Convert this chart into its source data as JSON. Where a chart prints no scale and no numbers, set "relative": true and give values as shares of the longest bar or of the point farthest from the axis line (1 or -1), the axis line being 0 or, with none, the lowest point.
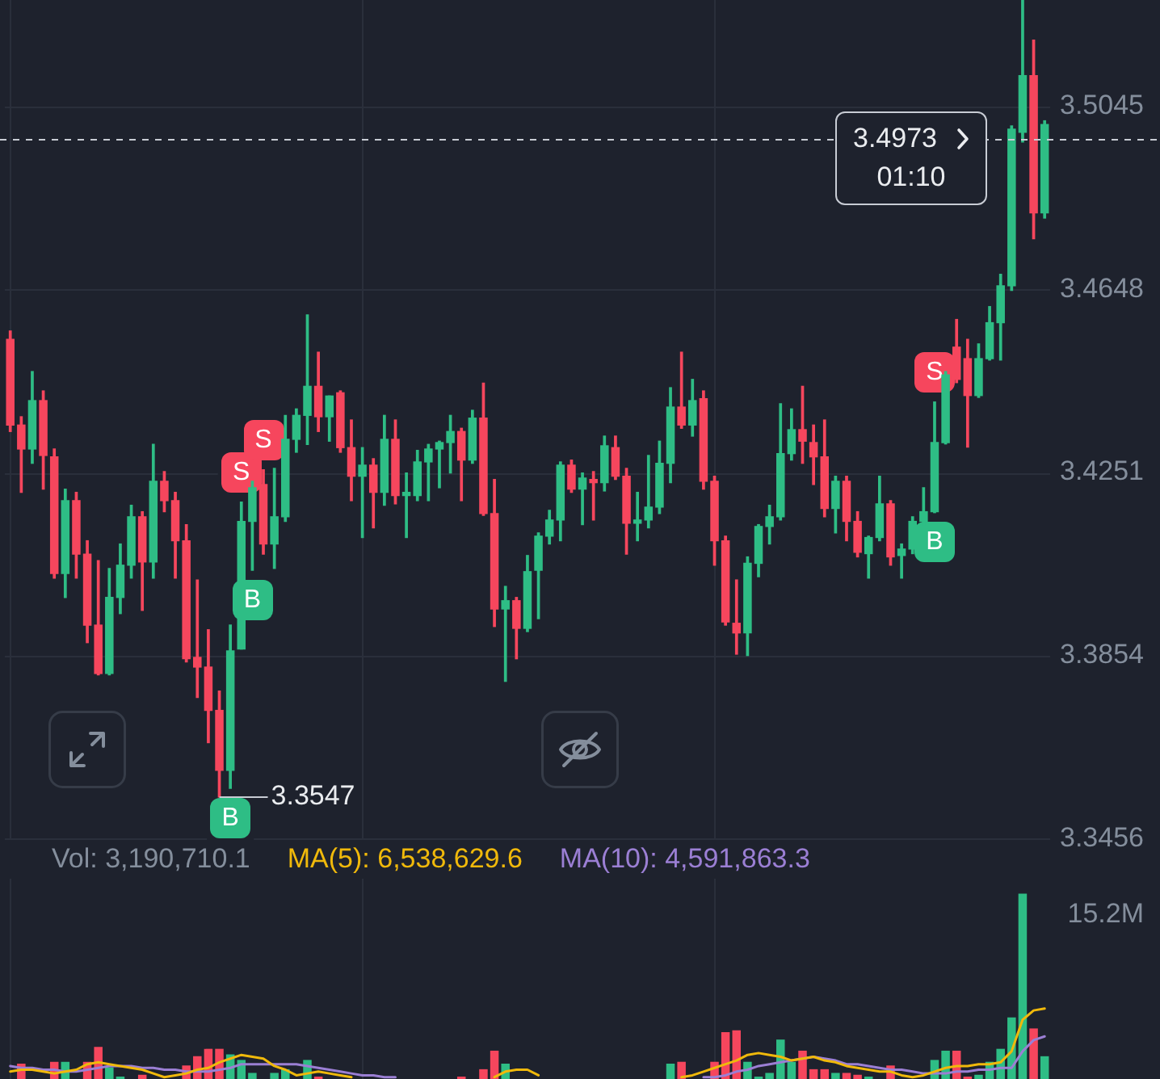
{
  "chart_data": [
    {
      "type": "candlestick",
      "categories": [
        null,
        null,
        null,
        null,
        null,
        null,
        null,
        null,
        null,
        null,
        null,
        null,
        null,
        null,
        null,
        null,
        null,
        null,
        null,
        null,
        null,
        null,
        null,
        null,
        null,
        null,
        null,
        null,
        null,
        null,
        null,
        null,
        null,
        null,
        null,
        null,
        null,
        null,
        null,
        null,
        null,
        null,
        null,
        null,
        null,
        null,
        null,
        null,
        null,
        null,
        null,
        null,
        null,
        null,
        null,
        null,
        null,
        null,
        null,
        null,
        null,
        null,
        null,
        null,
        null,
        null,
        null,
        null,
        null,
        null,
        null,
        null,
        null,
        null,
        null,
        null,
        null,
        null,
        null,
        null,
        null,
        null,
        null,
        null,
        null,
        null,
        null,
        null,
        null,
        null,
        null,
        null,
        null,
        null,
        null
      ],
      "ohlc": [
        [
          3.454,
          3.4558,
          3.434,
          3.4354
        ],
        [
          3.4354,
          3.4372,
          3.4208,
          3.4302
        ],
        [
          3.4302,
          3.447,
          3.4271,
          3.4407
        ],
        [
          3.4407,
          3.4428,
          3.4215,
          3.4288
        ],
        [
          3.4285,
          3.4302,
          3.4022,
          3.4032
        ],
        [
          3.4032,
          3.4215,
          3.398,
          3.419
        ],
        [
          3.419,
          3.4208,
          3.4022,
          3.4074
        ],
        [
          3.4074,
          3.4103,
          3.3882,
          3.392
        ],
        [
          3.392,
          3.406,
          3.3812,
          3.3815
        ],
        [
          3.3815,
          3.4043,
          3.3812,
          3.398
        ],
        [
          3.398,
          3.4096,
          3.3945,
          3.405
        ],
        [
          3.405,
          3.418,
          3.4022,
          3.4155
        ],
        [
          3.4155,
          3.4166,
          3.3952,
          3.4057
        ],
        [
          3.4057,
          3.4312,
          3.4022,
          3.4232
        ],
        [
          3.4232,
          3.4253,
          3.4166,
          3.419
        ],
        [
          3.419,
          3.4208,
          3.4022,
          3.4103
        ],
        [
          3.4103,
          3.4138,
          3.384,
          3.3847
        ],
        [
          3.385,
          3.4018,
          3.3763,
          3.3829
        ],
        [
          3.3829,
          3.391,
          3.3665,
          3.3735
        ],
        [
          3.3735,
          3.3777,
          3.3547,
          3.3605
        ],
        [
          3.3605,
          3.392,
          3.3566,
          3.3864
        ],
        [
          3.3868,
          3.4187,
          3.3868,
          3.4145
        ],
        [
          3.4145,
          3.4232,
          3.4039,
          3.4218
        ],
        [
          3.4225,
          3.4257,
          3.4074,
          3.4096
        ],
        [
          3.4096,
          3.426,
          3.4043,
          3.4155
        ],
        [
          3.4155,
          3.4375,
          3.4145,
          3.4323
        ],
        [
          3.4323,
          3.4389,
          3.4295,
          3.4375
        ],
        [
          3.4375,
          3.4593,
          3.4312,
          3.4438
        ],
        [
          3.4438,
          3.4512,
          3.434,
          3.4372
        ],
        [
          3.4372,
          3.4417,
          3.4319,
          3.4417
        ],
        [
          3.4424,
          3.4428,
          3.4295,
          3.4305
        ],
        [
          3.4305,
          3.4365,
          3.419,
          3.4243
        ],
        [
          3.4243,
          3.4305,
          3.411,
          3.4267
        ],
        [
          3.4267,
          3.4281,
          3.4131,
          3.4208
        ],
        [
          3.4208,
          3.4375,
          3.418,
          3.4323
        ],
        [
          3.4323,
          3.4365,
          3.4183,
          3.4201
        ],
        [
          3.4201,
          3.425,
          3.411,
          3.4208
        ],
        [
          3.4201,
          3.4299,
          3.419,
          3.4274
        ],
        [
          3.4274,
          3.4312,
          3.419,
          3.4302
        ],
        [
          3.4302,
          3.4319,
          3.4218,
          3.4316
        ],
        [
          3.4316,
          3.4375,
          3.425,
          3.434
        ],
        [
          3.434,
          3.4347,
          3.419,
          3.4278
        ],
        [
          3.4278,
          3.4386,
          3.4271,
          3.4369
        ],
        [
          3.4369,
          3.4445,
          3.4158,
          3.4162
        ],
        [
          3.4162,
          3.4236,
          3.3917,
          3.3955
        ],
        [
          3.3955,
          3.4004,
          3.3798,
          3.3973
        ],
        [
          3.3973,
          3.398,
          3.3847,
          3.3913
        ],
        [
          3.3913,
          3.4071,
          3.3906,
          3.4036
        ],
        [
          3.4039,
          3.412,
          3.3934,
          3.4113
        ],
        [
          3.4113,
          3.4169,
          3.4096,
          3.4148
        ],
        [
          3.4148,
          3.4274,
          3.4103,
          3.4267
        ],
        [
          3.4267,
          3.4278,
          3.4208,
          3.4215
        ],
        [
          3.4215,
          3.425,
          3.4138,
          3.4239
        ],
        [
          3.4236,
          3.4253,
          3.4148,
          3.4229
        ],
        [
          3.4229,
          3.433,
          3.4211,
          3.4309
        ],
        [
          3.4305,
          3.433,
          3.4236,
          3.4243
        ],
        [
          3.4243,
          3.426,
          3.4074,
          3.4141
        ],
        [
          3.4141,
          3.4208,
          3.4103,
          3.4148
        ],
        [
          3.4148,
          3.4288,
          3.4131,
          3.4176
        ],
        [
          3.4176,
          3.4319,
          3.4162,
          3.4271
        ],
        [
          3.4271,
          3.4435,
          3.4229,
          3.4393
        ],
        [
          3.4393,
          3.4512,
          3.4347,
          3.4354
        ],
        [
          3.4354,
          3.4453,
          3.433,
          3.4407
        ],
        [
          3.4411,
          3.4428,
          3.4215,
          3.4232
        ],
        [
          3.4232,
          3.4243,
          3.405,
          3.4103
        ],
        [
          3.4103,
          3.4113,
          3.392,
          3.3927
        ],
        [
          3.3924,
          3.4018,
          3.3857,
          3.3903
        ],
        [
          3.3903,
          3.4068,
          3.3854,
          3.4054
        ],
        [
          3.4054,
          3.4138,
          3.4025,
          3.4134
        ],
        [
          3.4134,
          3.418,
          3.4096,
          3.4155
        ],
        [
          3.4155,
          3.44,
          3.4148,
          3.4292
        ],
        [
          3.4292,
          3.4389,
          3.4278,
          3.4344
        ],
        [
          3.4344,
          3.4438,
          3.4271,
          3.4319
        ],
        [
          3.4316,
          3.4354,
          3.4225,
          3.4285
        ],
        [
          3.4285,
          3.4365,
          3.4155,
          3.4173
        ],
        [
          3.4173,
          3.4243,
          3.412,
          3.4232
        ],
        [
          3.4232,
          3.4243,
          3.4103,
          3.4145
        ],
        [
          3.4145,
          3.4166,
          3.4068,
          3.4078
        ],
        [
          3.4075,
          3.4113,
          3.4022,
          3.411
        ],
        [
          3.411,
          3.4243,
          3.4103,
          3.4183
        ],
        [
          3.4183,
          3.419,
          3.405,
          3.4068
        ],
        [
          3.4071,
          3.4096,
          3.4022,
          3.4085
        ],
        [
          3.4085,
          3.4155,
          3.4075,
          3.4145
        ],
        [
          3.4145,
          3.4218,
          3.4138,
          3.4166
        ],
        [
          3.4166,
          3.4404,
          3.4164,
          3.4316
        ],
        [
          3.4316,
          3.447,
          3.4313,
          3.4463
        ],
        [
          3.4523,
          3.4583,
          3.4446,
          3.4453
        ],
        [
          3.4498,
          3.454,
          3.4306,
          3.4418
        ],
        [
          3.4418,
          3.453,
          3.4414,
          3.4498
        ],
        [
          3.4498,
          3.4611,
          3.4495,
          3.4576
        ],
        [
          3.4576,
          3.4681,
          3.4495,
          3.4656
        ],
        [
          3.4656,
          3.5003,
          3.4646,
          3.4996
        ],
        [
          3.4989,
          3.5276,
          3.4968,
          3.5112
        ],
        [
          3.5112,
          3.5189,
          3.4758,
          3.4814
        ],
        [
          3.4814,
          3.5014,
          3.4803,
          3.5006
        ]
      ],
      "colors": [
        "#f6465d",
        "#f6465d",
        "#2ebd85",
        "#f6465d",
        "#f6465d",
        "#2ebd85",
        "#f6465d",
        "#f6465d",
        "#f6465d",
        "#2ebd85",
        "#2ebd85",
        "#2ebd85",
        "#f6465d",
        "#2ebd85",
        "#f6465d",
        "#f6465d",
        "#f6465d",
        "#f6465d",
        "#f6465d",
        "#f6465d",
        "#2ebd85",
        "#2ebd85",
        "#2ebd85",
        "#f6465d",
        "#2ebd85",
        "#2ebd85",
        "#2ebd85",
        "#2ebd85",
        "#f6465d",
        "#2ebd85",
        "#f6465d",
        "#f6465d",
        "#2ebd85",
        "#f6465d",
        "#2ebd85",
        "#f6465d",
        "#2ebd85",
        "#2ebd85",
        "#2ebd85",
        "#2ebd85",
        "#2ebd85",
        "#f6465d",
        "#2ebd85",
        "#f6465d",
        "#f6465d",
        "#2ebd85",
        "#f6465d",
        "#2ebd85",
        "#2ebd85",
        "#2ebd85",
        "#2ebd85",
        "#f6465d",
        "#2ebd85",
        "#f6465d",
        "#2ebd85",
        "#f6465d",
        "#f6465d",
        "#2ebd85",
        "#2ebd85",
        "#2ebd85",
        "#2ebd85",
        "#f6465d",
        "#2ebd85",
        "#f6465d",
        "#f6465d",
        "#f6465d",
        "#f6465d",
        "#2ebd85",
        "#2ebd85",
        "#2ebd85",
        "#2ebd85",
        "#2ebd85",
        "#f6465d",
        "#f6465d",
        "#f6465d",
        "#2ebd85",
        "#f6465d",
        "#f6465d",
        "#2ebd85",
        "#2ebd85",
        "#f6465d",
        "#2ebd85",
        "#2ebd85",
        "#2ebd85",
        "#2ebd85",
        "#2ebd85",
        "#f6465d",
        "#f6465d",
        "#2ebd85",
        "#2ebd85",
        "#2ebd85",
        "#2ebd85",
        "#2ebd85",
        "#f6465d",
        "#2ebd85"
      ],
      "value_labels": [
        null,
        null,
        null,
        null,
        null,
        null,
        null,
        null,
        null,
        null,
        null,
        null,
        null,
        null,
        null,
        null,
        null,
        null,
        null,
        "3.3547",
        null,
        null,
        null,
        null,
        null,
        null,
        null,
        null,
        null,
        null,
        null,
        null,
        null,
        null,
        null,
        null,
        null,
        null,
        null,
        null,
        null,
        null,
        null,
        null,
        null,
        null,
        null,
        null,
        null,
        null,
        null,
        null,
        null,
        null,
        null,
        null,
        null,
        null,
        null,
        null,
        null,
        null,
        null,
        null,
        null,
        null,
        null,
        null,
        null,
        null,
        null,
        null,
        null,
        null,
        null,
        null,
        null,
        null,
        null,
        null,
        null,
        null,
        null,
        null,
        null,
        null,
        null,
        null,
        null,
        null,
        null,
        null,
        null,
        null,
        null
      ],
      "ylim": [
        3.3454,
        3.5276
      ],
      "yticks": [
        3.3456,
        3.3854,
        3.4251,
        3.4648,
        3.5045
      ],
      "grid": true,
      "tick_labels": "y",
      "ref_lines": [
        {
          "axis": "y",
          "value": 3.4973,
          "label": "3.4973",
          "color": "#c8ccd4",
          "line_style": "dashed"
        }
      ],
      "annotations": [
        {
          "text": "B",
          "y": 3.3566
        },
        {
          "text": "S",
          "y": 3.4187
        },
        {
          "text": "B",
          "y": 3.4039
        },
        {
          "text": "S",
          "y": 3.4257
        },
        {
          "text": "S",
          "y": 3.4404
        },
        {
          "text": "B",
          "y": 3.4164
        },
        "01:10"
      ]
    },
    {
      "type": "bar",
      "relative": true,
      "title": "Vol: 3,190,710.1",
      "legend": "top left",
      "marker": "none",
      "tick_labels": false,
      "grid": "x",
      "categories": [
        null,
        null,
        null,
        null,
        null,
        null,
        null,
        null,
        null,
        null,
        null,
        null,
        null,
        null,
        null,
        null,
        null,
        null,
        null,
        null,
        null,
        null,
        null,
        null,
        null,
        null,
        null,
        null,
        null,
        null,
        null,
        null,
        null,
        null,
        null,
        null,
        null,
        null,
        null,
        null,
        null,
        null,
        null,
        null,
        null,
        null,
        null,
        null,
        null,
        null,
        null,
        null,
        null,
        null,
        null,
        null,
        null,
        null,
        null,
        null,
        null,
        null,
        null,
        null,
        null,
        null,
        null,
        null,
        null,
        null,
        null,
        null,
        null,
        null,
        null,
        null,
        null,
        null,
        null,
        null,
        null,
        null,
        null,
        null,
        null,
        null,
        null,
        null,
        null,
        null,
        null,
        null,
        null,
        null,
        null
      ],
      "series": [
        {
          "values": [
            null,
            0.08,
            null,
            null,
            0.09,
            0.09,
            null,
            0.09,
            0.17,
            0.06,
            0.01,
            null,
            0.02,
            null,
            null,
            null,
            0.07,
            0.12,
            0.16,
            0.16,
            0.13,
            0.1,
            0.03,
            null,
            0.03,
            0.05,
            null,
            0.1,
            0.01,
            null,
            null,
            null,
            null,
            null,
            null,
            null,
            null,
            null,
            null,
            null,
            null,
            0.01,
            null,
            0.05,
            0.15,
            0.08,
            null,
            null,
            null,
            null,
            null,
            null,
            null,
            null,
            null,
            null,
            null,
            null,
            null,
            null,
            0.08,
            0.09,
            null,
            null,
            0.09,
            0.25,
            0.26,
            0.09,
            0.01,
            0.03,
            0.21,
            0.09,
            0.15,
            0.05,
            0.05,
            0.03,
            0.03,
            0.02,
            0.01,
            null,
            0.07,
            null,
            null,
            null,
            0.1,
            0.15,
            0.15,
            0.01,
            0.02,
            0.09,
            0.16,
            0.33,
            1,
            0.27,
            0.12
          ],
          "colors": [
            "#f6465d",
            "#f6465d",
            "#2ebd85",
            "#f6465d",
            "#f6465d",
            "#2ebd85",
            "#f6465d",
            "#f6465d",
            "#f6465d",
            "#2ebd85",
            "#2ebd85",
            "#2ebd85",
            "#f6465d",
            "#2ebd85",
            "#f6465d",
            "#f6465d",
            "#f6465d",
            "#f6465d",
            "#f6465d",
            "#f6465d",
            "#2ebd85",
            "#2ebd85",
            "#2ebd85",
            "#f6465d",
            "#2ebd85",
            "#2ebd85",
            "#2ebd85",
            "#2ebd85",
            "#f6465d",
            "#2ebd85",
            "#f6465d",
            "#f6465d",
            "#2ebd85",
            "#f6465d",
            "#2ebd85",
            "#f6465d",
            "#2ebd85",
            "#2ebd85",
            "#2ebd85",
            "#2ebd85",
            "#2ebd85",
            "#f6465d",
            "#2ebd85",
            "#f6465d",
            "#f6465d",
            "#2ebd85",
            "#f6465d",
            "#2ebd85",
            "#2ebd85",
            "#2ebd85",
            "#2ebd85",
            "#f6465d",
            "#2ebd85",
            "#f6465d",
            "#2ebd85",
            "#f6465d",
            "#f6465d",
            "#2ebd85",
            "#2ebd85",
            "#2ebd85",
            "#2ebd85",
            "#f6465d",
            "#2ebd85",
            "#f6465d",
            "#f6465d",
            "#f6465d",
            "#f6465d",
            "#2ebd85",
            "#2ebd85",
            "#2ebd85",
            "#2ebd85",
            "#2ebd85",
            "#f6465d",
            "#f6465d",
            "#f6465d",
            "#2ebd85",
            "#f6465d",
            "#f6465d",
            "#2ebd85",
            "#2ebd85",
            "#f6465d",
            "#2ebd85",
            "#2ebd85",
            "#2ebd85",
            "#2ebd85",
            "#2ebd85",
            "#f6465d",
            "#f6465d",
            "#2ebd85",
            "#2ebd85",
            "#2ebd85",
            "#2ebd85",
            "#2ebd85",
            "#f6465d",
            "#2ebd85"
          ]
        },
        {
          "name": "MA(5): 6,538,629.6",
          "type": "line",
          "color": "#f0b90b",
          "values": [
            0.04,
            0.05,
            0.05,
            0.04,
            0.03,
            0.04,
            0.05,
            0.08,
            0.09,
            0.08,
            0.07,
            0.06,
            0.05,
            0.03,
            0.01,
            0.02,
            0.03,
            0.05,
            0.06,
            0.09,
            0.11,
            0.13,
            0.12,
            0.11,
            0.07,
            0.05,
            0.02,
            0.03,
            0.04,
            0.03,
            0.02,
            0.01,
            null,
            null,
            null,
            null,
            null,
            null,
            null,
            null,
            null,
            null,
            null,
            null,
            0.01,
            0.04,
            0.05,
            0.05,
            0.02,
            null,
            null,
            null,
            null,
            null,
            null,
            null,
            null,
            null,
            null,
            null,
            null,
            0.01,
            0.02,
            0.04,
            0.06,
            0.08,
            0.1,
            0.13,
            0.14,
            0.13,
            0.12,
            0.1,
            0.11,
            0.12,
            0.1,
            0.09,
            0.07,
            0.06,
            0.05,
            0.04,
            0.04,
            0.02,
            0.01,
            0.02,
            0.04,
            0.06,
            0.07,
            0.07,
            0.08,
            0.08,
            0.09,
            0.15,
            0.32,
            0.37,
            0.38
          ]
        },
        {
          "name": "MA(10): 4,591,863.3",
          "type": "line",
          "color": "#9b7fd4",
          "values": [
            0.07,
            0.06,
            0.06,
            0.05,
            0.05,
            0.04,
            0.04,
            0.05,
            0.06,
            0.07,
            0.07,
            0.07,
            0.06,
            0.06,
            0.05,
            0.05,
            0.04,
            0.04,
            0.04,
            0.05,
            0.06,
            0.08,
            0.08,
            0.08,
            0.08,
            0.08,
            0.08,
            0.07,
            0.06,
            0.05,
            0.04,
            0.03,
            0.02,
            0.02,
            0.01,
            0.01,
            null,
            null,
            null,
            null,
            null,
            null,
            null,
            null,
            null,
            null,
            null,
            null,
            null,
            null,
            null,
            null,
            null,
            null,
            null,
            null,
            null,
            null,
            null,
            null,
            null,
            null,
            null,
            0.01,
            0.01,
            0.02,
            0.04,
            0.05,
            0.07,
            0.08,
            0.09,
            0.1,
            0.11,
            0.12,
            0.11,
            0.1,
            0.08,
            0.08,
            0.07,
            0.06,
            0.05,
            0.05,
            0.04,
            0.03,
            0.03,
            0.03,
            0.04,
            0.04,
            0.05,
            0.05,
            0.06,
            0.06,
            0.15,
            0.21,
            0.23
          ]
        }
      ],
      "annotations": [
        "15.2M"
      ]
    }
  ]
}
